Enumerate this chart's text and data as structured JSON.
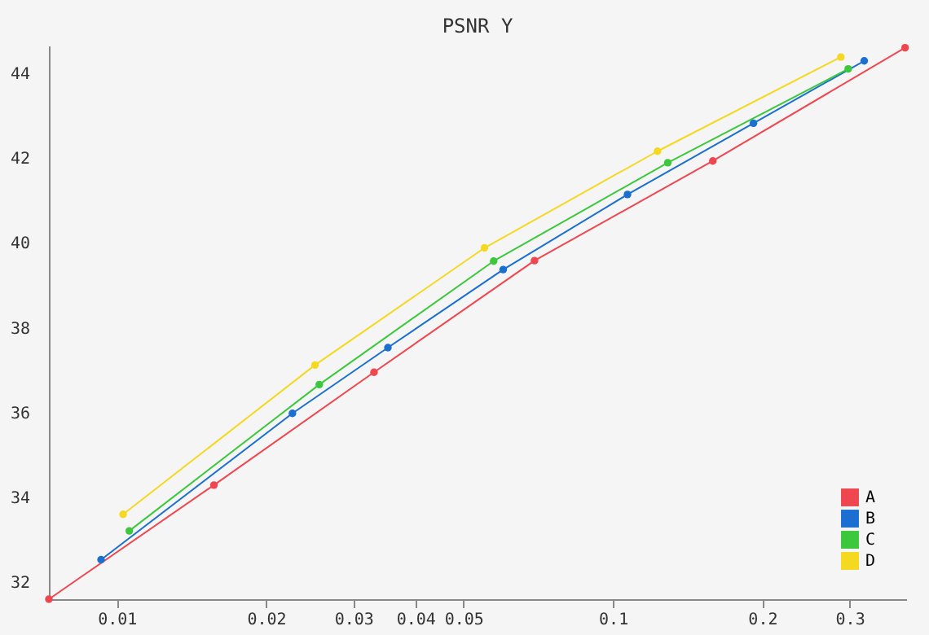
{
  "chart_data": {
    "type": "line",
    "title": "PSNR Y",
    "log": "x",
    "xlim": [
      0.0073,
      0.39
    ],
    "ylim": [
      31.6,
      44.65
    ],
    "xticks": [
      0.01,
      0.02,
      0.03,
      0.04,
      0.05,
      0.1,
      0.2,
      0.3
    ],
    "yticks": [
      32,
      34,
      36,
      38,
      40,
      42,
      44
    ],
    "grid": false,
    "legend": "bottom right",
    "marker": "circle",
    "line_style": "solid",
    "series": [
      {
        "name": "A",
        "color": "#f0464f",
        "x": [
          0.0073,
          0.0157,
          0.033,
          0.0695,
          0.159,
          0.388
        ],
        "values": [
          31.6,
          34.29,
          36.95,
          39.58,
          41.93,
          44.6
        ]
      },
      {
        "name": "B",
        "color": "#1a6fd0",
        "x": [
          0.0093,
          0.0226,
          0.0352,
          0.0601,
          0.107,
          0.192,
          0.321
        ],
        "values": [
          32.53,
          35.98,
          37.53,
          39.37,
          41.14,
          42.82,
          44.29
        ]
      },
      {
        "name": "C",
        "color": "#3cc83c",
        "x": [
          0.0106,
          0.0256,
          0.0575,
          0.129,
          0.298
        ],
        "values": [
          33.21,
          36.66,
          39.57,
          41.89,
          44.1
        ]
      },
      {
        "name": "D",
        "color": "#f5d820",
        "x": [
          0.0103,
          0.0251,
          0.0551,
          0.123,
          0.288
        ],
        "values": [
          33.6,
          37.12,
          39.88,
          42.16,
          44.38
        ]
      }
    ]
  }
}
